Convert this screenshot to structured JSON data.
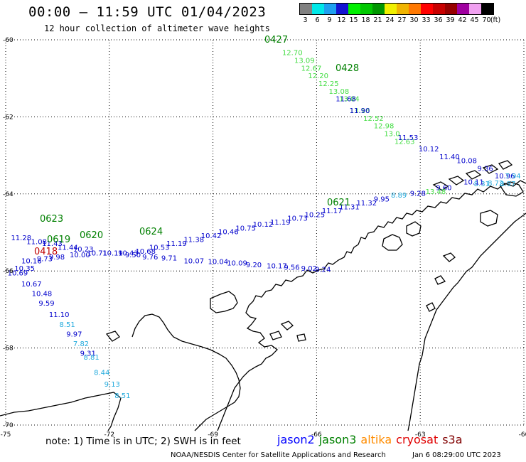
{
  "header": {
    "title": "00:00 – 11:59 UTC 01/04/2023",
    "subtitle": "12 hour collection of altimeter wave heights"
  },
  "scale": {
    "unit": "(ft)",
    "bins": [
      {
        "label": "3",
        "color": "#808080"
      },
      {
        "label": "6",
        "color": "#00e8e8"
      },
      {
        "label": "9",
        "color": "#1ea0f0"
      },
      {
        "label": "12",
        "color": "#1414d2"
      },
      {
        "label": "15",
        "color": "#00f000"
      },
      {
        "label": "18",
        "color": "#00c800"
      },
      {
        "label": "21",
        "color": "#009600"
      },
      {
        "label": "24",
        "color": "#f0f000"
      },
      {
        "label": "27",
        "color": "#f0b400"
      },
      {
        "label": "30",
        "color": "#ff7800"
      },
      {
        "label": "33",
        "color": "#ff0000"
      },
      {
        "label": "36",
        "color": "#c80000"
      },
      {
        "label": "39",
        "color": "#960000"
      },
      {
        "label": "42",
        "color": "#a000a0"
      },
      {
        "label": "45",
        "color": "#f0a0f0"
      },
      {
        "label": "70",
        "color": "#000000"
      }
    ]
  },
  "axes": {
    "lon_labels": [
      "-75",
      "-72",
      "-69",
      "-66",
      "-63",
      "-60"
    ],
    "lat_labels": [
      "-60",
      "-62",
      "-64",
      "-66",
      "-68",
      "-70"
    ],
    "lon_range": [
      -75,
      -60
    ],
    "lat_range": [
      -70,
      -60
    ]
  },
  "colors": {
    "jason2": "#0000ff",
    "jason3": "#008000",
    "altika": "#ff8c00",
    "cryosat": "#c00000",
    "s3a": "#800000",
    "coast": "#000000",
    "grid": "#000000"
  },
  "tracks": [
    {
      "time": "0427",
      "time_color": "#008000",
      "color": "#44dd44",
      "points": [
        {
          "lon": -66.75,
          "lat": -60.4,
          "v": "12.70"
        },
        {
          "lon": -66.4,
          "lat": -60.6,
          "v": "13.09"
        },
        {
          "lon": -66.2,
          "lat": -60.8,
          "v": "12.67"
        },
        {
          "lon": -66.0,
          "lat": -61.0,
          "v": "12.20"
        },
        {
          "lon": -65.7,
          "lat": -61.2,
          "v": "12.25"
        },
        {
          "lon": -65.4,
          "lat": -61.4,
          "v": "13.08"
        },
        {
          "lon": -65.1,
          "lat": -61.6,
          "v": "13.04"
        },
        {
          "lon": -64.8,
          "lat": -61.9,
          "v": "13.16"
        },
        {
          "lon": -64.4,
          "lat": -62.1,
          "v": "12.52"
        },
        {
          "lon": -64.1,
          "lat": -62.3,
          "v": "12.98"
        },
        {
          "lon": -63.8,
          "lat": -62.5,
          "v": "13.0"
        },
        {
          "lon": -63.5,
          "lat": -62.7,
          "v": "12.63"
        }
      ]
    },
    {
      "time": "0428",
      "time_color": "#008000",
      "color": "#0000cc",
      "points": [
        {
          "lon": -65.2,
          "lat": -61.6,
          "v": "11.68"
        },
        {
          "lon": -64.8,
          "lat": -61.9,
          "v": "11.90"
        },
        {
          "lon": -63.4,
          "lat": -62.6,
          "v": "11.53"
        },
        {
          "lon": -62.8,
          "lat": -62.9,
          "v": "10.12"
        },
        {
          "lon": -62.2,
          "lat": -63.1,
          "v": "11.40"
        },
        {
          "lon": -61.7,
          "lat": -63.2,
          "v": "10.08"
        },
        {
          "lon": -61.1,
          "lat": -63.4,
          "v": "9.36"
        },
        {
          "lon": -60.6,
          "lat": -63.6,
          "v": "10.96"
        }
      ]
    },
    {
      "time": "0427",
      "time_color": "#008000",
      "color": "#22aadd",
      "points": [
        {
          "lon": -60.45,
          "lat": -63.8,
          "v": "8.97"
        }
      ]
    },
    {
      "time": "0623",
      "time_color": "#008000",
      "color": "#0000cc",
      "points": [
        {
          "lon": -74.6,
          "lat": -65.2,
          "v": "11.28"
        },
        {
          "lon": -74.15,
          "lat": -65.3,
          "v": "11.08"
        },
        {
          "lon": -73.7,
          "lat": -65.35,
          "v": "11.43"
        },
        {
          "lon": -73.25,
          "lat": -65.45,
          "v": "11.44"
        },
        {
          "lon": -72.8,
          "lat": -65.5,
          "v": "10.23"
        },
        {
          "lon": -72.4,
          "lat": -65.6,
          "v": "10.71"
        },
        {
          "lon": -71.95,
          "lat": -65.6,
          "v": "10.19"
        },
        {
          "lon": -71.5,
          "lat": -65.6,
          "v": "10.43"
        },
        {
          "lon": -71.0,
          "lat": -65.55,
          "v": "10.68"
        },
        {
          "lon": -70.6,
          "lat": -65.45,
          "v": "10.53"
        },
        {
          "lon": -70.1,
          "lat": -65.35,
          "v": "11.19"
        },
        {
          "lon": -69.6,
          "lat": -65.25,
          "v": "11.38"
        },
        {
          "lon": -69.1,
          "lat": -65.15,
          "v": "10.42"
        },
        {
          "lon": -68.6,
          "lat": -65.05,
          "v": "10.46"
        },
        {
          "lon": -68.1,
          "lat": -64.95,
          "v": "10.75"
        },
        {
          "lon": -67.6,
          "lat": -64.85,
          "v": "10.12"
        },
        {
          "lon": -67.1,
          "lat": -64.8,
          "v": "11.19"
        },
        {
          "lon": -66.6,
          "lat": -64.7,
          "v": "10.73"
        },
        {
          "lon": -66.1,
          "lat": -64.6,
          "v": "10.25"
        },
        {
          "lon": -65.6,
          "lat": -64.5,
          "v": "11.17"
        },
        {
          "lon": -65.1,
          "lat": -64.4,
          "v": "11.31"
        },
        {
          "lon": -64.6,
          "lat": -64.3,
          "v": "11.32"
        },
        {
          "lon": -64.1,
          "lat": -64.2,
          "v": "9.95"
        }
      ]
    },
    {
      "time": "",
      "time_color": "#008000",
      "color": "#22aadd",
      "points": [
        {
          "lon": -63.6,
          "lat": -64.1,
          "v": "8.89"
        },
        {
          "lon": -60.3,
          "lat": -63.6,
          "v": "7.94"
        },
        {
          "lon": -61.2,
          "lat": -63.8,
          "v": "8.31"
        },
        {
          "lon": -60.8,
          "lat": -63.78,
          "v": "8.72"
        }
      ]
    },
    {
      "time": "",
      "time_color": "#008000",
      "color": "#0000cc",
      "points": [
        {
          "lon": -63.05,
          "lat": -64.05,
          "v": "9.28"
        },
        {
          "lon": -62.3,
          "lat": -63.9,
          "v": "9.60"
        },
        {
          "lon": -61.5,
          "lat": -63.75,
          "v": "10.11"
        }
      ]
    },
    {
      "time": "",
      "time_color": "#008000",
      "color": "#44dd44",
      "points": [
        {
          "lon": -62.6,
          "lat": -64.0,
          "v": "13.48"
        }
      ]
    },
    {
      "time": "0621",
      "time_color": "#008000",
      "color": "#0000cc",
      "points": []
    },
    {
      "time": "0624",
      "time_color": "#008000",
      "color": "#0000cc",
      "points": [
        {
          "lon": -71.3,
          "lat": -65.65,
          "v": "9.50"
        },
        {
          "lon": -70.8,
          "lat": -65.7,
          "v": "9.76"
        },
        {
          "lon": -70.25,
          "lat": -65.73,
          "v": "9.71"
        },
        {
          "lon": -69.6,
          "lat": -65.8,
          "v": "10.07"
        },
        {
          "lon": -68.9,
          "lat": -65.82,
          "v": "10.04"
        },
        {
          "lon": -68.35,
          "lat": -65.86,
          "v": "10.09"
        },
        {
          "lon": -67.8,
          "lat": -65.9,
          "v": "9.20"
        },
        {
          "lon": -67.2,
          "lat": -65.93,
          "v": "10.17"
        },
        {
          "lon": -66.7,
          "lat": -65.97,
          "v": "9.56"
        },
        {
          "lon": -66.2,
          "lat": -66.0,
          "v": "9.02"
        },
        {
          "lon": -65.8,
          "lat": -66.02,
          "v": "9.24"
        }
      ]
    },
    {
      "time": "0620",
      "time_color": "#008000",
      "color": "#0000cc",
      "points": [
        {
          "lon": -73.5,
          "lat": -65.7,
          "v": "9.98"
        },
        {
          "lon": -72.9,
          "lat": -65.65,
          "v": "10.00"
        }
      ]
    },
    {
      "time": "0619",
      "time_color": "#008000",
      "color": "#0000cc",
      "points": [
        {
          "lon": -74.3,
          "lat": -65.8,
          "v": "10.16"
        },
        {
          "lon": -73.85,
          "lat": -65.75,
          "v": "9.73"
        }
      ]
    },
    {
      "time": "0418",
      "time_color": "#c00000",
      "color": "#0000cc",
      "points": [
        {
          "lon": -74.5,
          "lat": -66.0,
          "v": "10.35"
        },
        {
          "lon": -74.7,
          "lat": -66.12,
          "v": "10.69"
        },
        {
          "lon": -74.3,
          "lat": -66.4,
          "v": "10.67"
        },
        {
          "lon": -74.0,
          "lat": -66.65,
          "v": "10.48"
        },
        {
          "lon": -73.8,
          "lat": -66.9,
          "v": "9.59"
        },
        {
          "lon": -73.5,
          "lat": -67.2,
          "v": "11.10"
        },
        {
          "lon": -73.0,
          "lat": -67.7,
          "v": "9.97"
        },
        {
          "lon": -72.6,
          "lat": -68.2,
          "v": "9.31"
        }
      ]
    },
    {
      "time": "",
      "time_color": "#008000",
      "color": "#22aadd",
      "points": [
        {
          "lon": -73.2,
          "lat": -67.45,
          "v": "8.51"
        },
        {
          "lon": -72.8,
          "lat": -67.95,
          "v": "7.82"
        },
        {
          "lon": -72.5,
          "lat": -68.3,
          "v": "8.81"
        },
        {
          "lon": -72.2,
          "lat": -68.7,
          "v": "8.44"
        },
        {
          "lon": -71.9,
          "lat": -69.0,
          "v": "9.13"
        },
        {
          "lon": -71.6,
          "lat": -69.3,
          "v": "8.51"
        }
      ]
    }
  ],
  "track_label_positions_note": "",
  "footer": {
    "note": "note: 1) Time is in UTC; 2) SWH is in feet",
    "satellites": [
      {
        "name": "jason2",
        "color": "#0000ff"
      },
      {
        "name": "jason3",
        "color": "#008000"
      },
      {
        "name": "altika",
        "color": "#ff8c00"
      },
      {
        "name": "cryosat",
        "color": "#e00000"
      },
      {
        "name": "s3a",
        "color": "#800000"
      }
    ],
    "credit": "NOAA/NESDIS Center for Satellite Applications and Research",
    "generated": "Jan  6 08:29:00 UTC 2023"
  }
}
